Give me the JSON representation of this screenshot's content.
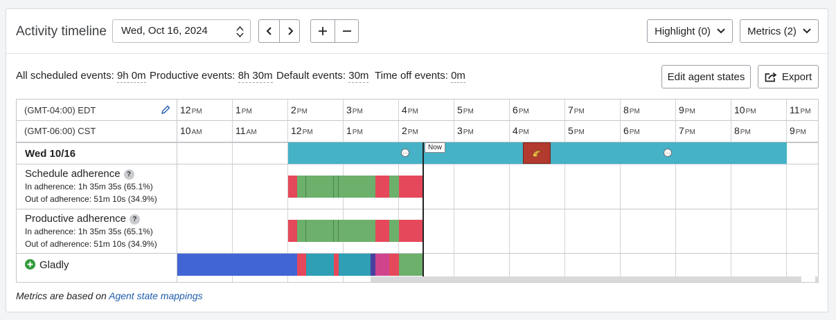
{
  "header": {
    "title": "Activity timeline",
    "date_value": "Wed, Oct 16, 2024",
    "highlight_label": "Highlight (0)",
    "metrics_label": "Metrics (2)"
  },
  "summary": {
    "scheduled_label": "All scheduled events:",
    "scheduled_value": "9h 0m",
    "productive_label": "Productive events:",
    "productive_value": "8h 30m",
    "default_label": "Default events:",
    "default_value": "30m",
    "timeoff_label": "Time off events:",
    "timeoff_value": "0m",
    "edit_states_label": "Edit agent states",
    "export_label": "Export"
  },
  "timeline": {
    "tz1": "(GMT-04:00) EDT",
    "tz2": "(GMT-06:00) CST",
    "tz1_ticks": [
      {
        "h": "12",
        "ap": "PM"
      },
      {
        "h": "1",
        "ap": "PM"
      },
      {
        "h": "2",
        "ap": "PM"
      },
      {
        "h": "3",
        "ap": "PM"
      },
      {
        "h": "4",
        "ap": "PM"
      },
      {
        "h": "5",
        "ap": "PM"
      },
      {
        "h": "6",
        "ap": "PM"
      },
      {
        "h": "7",
        "ap": "PM"
      },
      {
        "h": "8",
        "ap": "PM"
      },
      {
        "h": "9",
        "ap": "PM"
      },
      {
        "h": "10",
        "ap": "PM"
      },
      {
        "h": "11",
        "ap": "PM"
      }
    ],
    "tz2_ticks": [
      {
        "h": "10",
        "ap": "AM"
      },
      {
        "h": "11",
        "ap": "AM"
      },
      {
        "h": "12",
        "ap": "PM"
      },
      {
        "h": "1",
        "ap": "PM"
      },
      {
        "h": "2",
        "ap": "PM"
      },
      {
        "h": "3",
        "ap": "PM"
      },
      {
        "h": "4",
        "ap": "PM"
      },
      {
        "h": "5",
        "ap": "PM"
      },
      {
        "h": "6",
        "ap": "PM"
      },
      {
        "h": "7",
        "ap": "PM"
      },
      {
        "h": "8",
        "ap": "PM"
      },
      {
        "h": "9",
        "ap": "PM"
      }
    ],
    "now_label": "Now",
    "day_label": "Wed 10/16",
    "schedule_adherence": {
      "title": "Schedule adherence",
      "help": "?",
      "in": "In adherence: 1h 35m 35s  (65.1%)",
      "out": "Out of adherence: 51m 10s  (34.9%)"
    },
    "productive_adherence": {
      "title": "Productive adherence",
      "help": "?",
      "in": "In adherence: 1h 35m 35s  (65.1%)",
      "out": "Out of adherence: 51m 10s  (34.9%)"
    },
    "gladly_label": "Gladly",
    "colors": {
      "schedule": "#45b2c7",
      "in_adherence": "#6db06b",
      "out_adherence": "#e5485a",
      "lunch": "#b23a2e",
      "gladly_blue": "#4265d6",
      "gladly_purple": "#4a3f9e",
      "gladly_pink": "#d0448e"
    }
  },
  "footer": {
    "prefix": "Metrics are based on ",
    "link": "Agent state mappings"
  }
}
